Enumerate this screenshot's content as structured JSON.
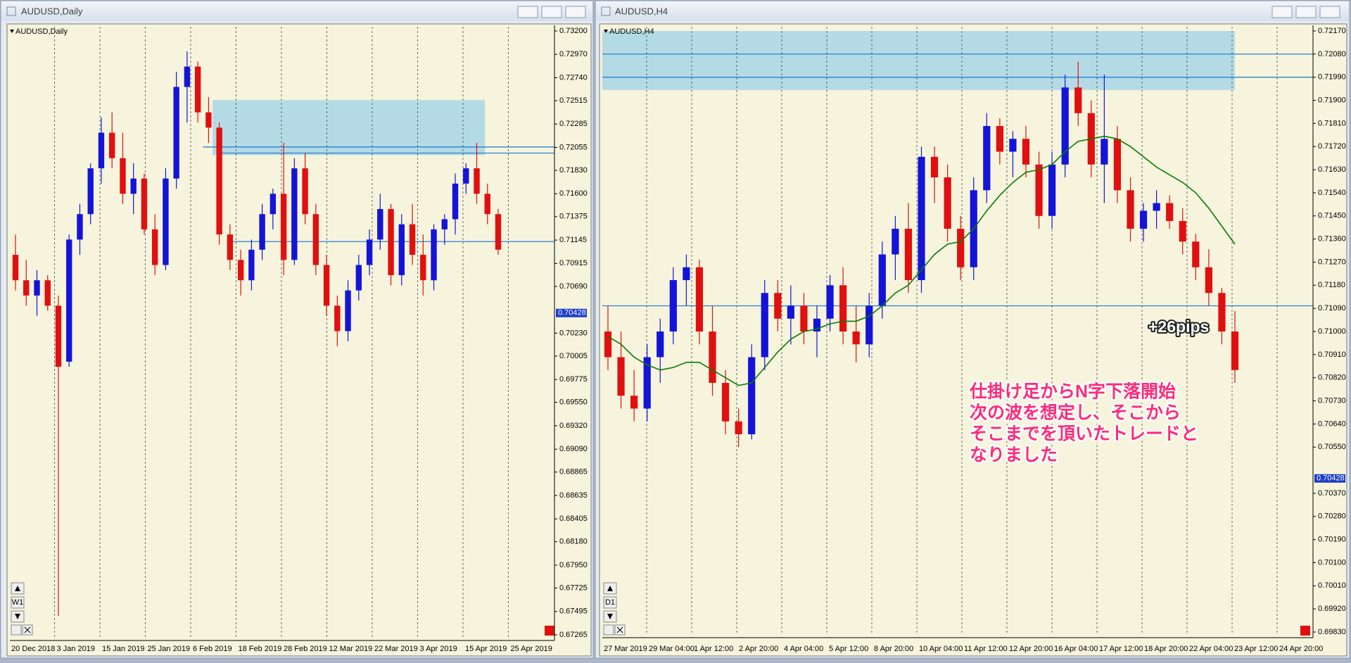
{
  "windows": [
    {
      "title": "AUDUSD,Daily",
      "period": "W1"
    },
    {
      "title": "AUDUSD,H4",
      "period": "D1"
    }
  ],
  "chart_data": [
    {
      "type": "candlestick",
      "label": "AUDUSD,Daily",
      "up_color": "#1414d8",
      "down_color": "#e01010",
      "ylim": [
        0.67265,
        0.732
      ],
      "yticks": [
        {
          "value": 0.732,
          "label": "0.73200"
        },
        {
          "value": 0.7297,
          "label": "0.72970"
        },
        {
          "value": 0.7274,
          "label": "0.72740"
        },
        {
          "value": 0.72515,
          "label": "0.72515"
        },
        {
          "value": 0.72285,
          "label": "0.72285"
        },
        {
          "value": 0.72055,
          "label": "0.72055"
        },
        {
          "value": 0.7183,
          "label": "0.71830"
        },
        {
          "value": 0.716,
          "label": "0.71600"
        },
        {
          "value": 0.71375,
          "label": "0.71375"
        },
        {
          "value": 0.71145,
          "label": "0.71145"
        },
        {
          "value": 0.70915,
          "label": "0.70915"
        },
        {
          "value": 0.7069,
          "label": "0.70690"
        },
        {
          "value": 0.7023,
          "label": "0.70230"
        },
        {
          "value": 0.70005,
          "label": "0.70005"
        },
        {
          "value": 0.69775,
          "label": "0.69775"
        },
        {
          "value": 0.6955,
          "label": "0.69550"
        },
        {
          "value": 0.6932,
          "label": "0.69320"
        },
        {
          "value": 0.6909,
          "label": "0.69090"
        },
        {
          "value": 0.68865,
          "label": "0.68865"
        },
        {
          "value": 0.68635,
          "label": "0.68635"
        },
        {
          "value": 0.68405,
          "label": "0.68405"
        },
        {
          "value": 0.6818,
          "label": "0.68180"
        },
        {
          "value": 0.6795,
          "label": "0.67950"
        },
        {
          "value": 0.67725,
          "label": "0.67725"
        },
        {
          "value": 0.67495,
          "label": "0.67495"
        },
        {
          "value": 0.67265,
          "label": "0.67265"
        }
      ],
      "bid": {
        "value": 0.70428,
        "label": "0.70428"
      },
      "x_labels": [
        "20 Dec 2018",
        "3 Jan 2019",
        "15 Jan 2019",
        "25 Jan 2019",
        "6 Feb 2019",
        "18 Feb 2019",
        "28 Feb 2019",
        "12 Mar 2019",
        "22 Mar 2019",
        "3 Apr 2019",
        "15 Apr 2019",
        "25 Apr 2019"
      ],
      "zone": [
        0.7198,
        0.7252
      ],
      "levels": [
        0.7206,
        0.72,
        0.7113
      ],
      "level_color": "#2a7fd4",
      "zone_color": "#add8e6",
      "candles": [
        [
          0.71,
          0.712,
          0.7065,
          0.7075
        ],
        [
          0.7075,
          0.7095,
          0.705,
          0.706
        ],
        [
          0.706,
          0.7085,
          0.704,
          0.7075
        ],
        [
          0.7075,
          0.708,
          0.7045,
          0.705
        ],
        [
          0.705,
          0.706,
          0.6745,
          0.699
        ],
        [
          0.6995,
          0.712,
          0.699,
          0.7115
        ],
        [
          0.7115,
          0.715,
          0.71,
          0.714
        ],
        [
          0.714,
          0.719,
          0.713,
          0.7185
        ],
        [
          0.7185,
          0.7235,
          0.717,
          0.722
        ],
        [
          0.722,
          0.724,
          0.7185,
          0.7195
        ],
        [
          0.7195,
          0.722,
          0.715,
          0.716
        ],
        [
          0.716,
          0.719,
          0.714,
          0.7175
        ],
        [
          0.7175,
          0.718,
          0.712,
          0.7125
        ],
        [
          0.7125,
          0.714,
          0.708,
          0.709
        ],
        [
          0.709,
          0.7185,
          0.7085,
          0.7175
        ],
        [
          0.7175,
          0.728,
          0.7165,
          0.7265
        ],
        [
          0.7265,
          0.73,
          0.723,
          0.7285
        ],
        [
          0.7285,
          0.729,
          0.723,
          0.724
        ],
        [
          0.724,
          0.7255,
          0.721,
          0.7225
        ],
        [
          0.7225,
          0.723,
          0.711,
          0.712
        ],
        [
          0.712,
          0.713,
          0.7085,
          0.7095
        ],
        [
          0.7095,
          0.7105,
          0.706,
          0.7075
        ],
        [
          0.7075,
          0.7115,
          0.7065,
          0.7105
        ],
        [
          0.7105,
          0.715,
          0.7095,
          0.714
        ],
        [
          0.714,
          0.7165,
          0.7125,
          0.716
        ],
        [
          0.716,
          0.721,
          0.708,
          0.7095
        ],
        [
          0.7095,
          0.7195,
          0.709,
          0.7185
        ],
        [
          0.7185,
          0.72,
          0.713,
          0.714
        ],
        [
          0.714,
          0.715,
          0.708,
          0.709
        ],
        [
          0.709,
          0.71,
          0.704,
          0.705
        ],
        [
          0.705,
          0.706,
          0.701,
          0.7025
        ],
        [
          0.7025,
          0.7075,
          0.7015,
          0.7065
        ],
        [
          0.7065,
          0.71,
          0.7055,
          0.709
        ],
        [
          0.709,
          0.7125,
          0.708,
          0.7115
        ],
        [
          0.7115,
          0.716,
          0.7105,
          0.7145
        ],
        [
          0.7145,
          0.715,
          0.707,
          0.708
        ],
        [
          0.708,
          0.714,
          0.707,
          0.713
        ],
        [
          0.713,
          0.715,
          0.709,
          0.71
        ],
        [
          0.71,
          0.712,
          0.706,
          0.7075
        ],
        [
          0.7075,
          0.713,
          0.7065,
          0.7125
        ],
        [
          0.7125,
          0.714,
          0.711,
          0.7135
        ],
        [
          0.7135,
          0.718,
          0.712,
          0.717
        ],
        [
          0.717,
          0.719,
          0.716,
          0.7185
        ],
        [
          0.7185,
          0.721,
          0.715,
          0.716
        ],
        [
          0.716,
          0.717,
          0.713,
          0.714
        ],
        [
          0.714,
          0.7145,
          0.71,
          0.7105
        ]
      ]
    },
    {
      "type": "candlestick",
      "label": "AUDUSD,H4",
      "up_color": "#1414d8",
      "down_color": "#e01010",
      "ylim": [
        0.6983,
        0.7217
      ],
      "yticks": [
        {
          "value": 0.7217,
          "label": "0.72170"
        },
        {
          "value": 0.7208,
          "label": "0.72080"
        },
        {
          "value": 0.7199,
          "label": "0.71990"
        },
        {
          "value": 0.719,
          "label": "0.71900"
        },
        {
          "value": 0.7181,
          "label": "0.71810"
        },
        {
          "value": 0.7172,
          "label": "0.71720"
        },
        {
          "value": 0.7163,
          "label": "0.71630"
        },
        {
          "value": 0.7154,
          "label": "0.71540"
        },
        {
          "value": 0.7145,
          "label": "0.71450"
        },
        {
          "value": 0.7136,
          "label": "0.71360"
        },
        {
          "value": 0.7127,
          "label": "0.71270"
        },
        {
          "value": 0.7118,
          "label": "0.71180"
        },
        {
          "value": 0.7109,
          "label": "0.71090"
        },
        {
          "value": 0.71,
          "label": "0.71000"
        },
        {
          "value": 0.7091,
          "label": "0.70910"
        },
        {
          "value": 0.7082,
          "label": "0.70820"
        },
        {
          "value": 0.7073,
          "label": "0.70730"
        },
        {
          "value": 0.7064,
          "label": "0.70640"
        },
        {
          "value": 0.7055,
          "label": "0.70550"
        },
        {
          "value": 0.7037,
          "label": "0.70370"
        },
        {
          "value": 0.7028,
          "label": "0.70280"
        },
        {
          "value": 0.7019,
          "label": "0.70190"
        },
        {
          "value": 0.701,
          "label": "0.70100"
        },
        {
          "value": 0.7001,
          "label": "0.70010"
        },
        {
          "value": 0.6992,
          "label": "0.69920"
        },
        {
          "value": 0.6983,
          "label": "0.69830"
        }
      ],
      "bid": {
        "value": 0.70428,
        "label": "0.70428"
      },
      "x_labels": [
        "27 Mar 2019",
        "29 Mar 04:00",
        "1 Apr 12:00",
        "2 Apr 20:00",
        "4 Apr 04:00",
        "5 Apr 12:00",
        "8 Apr 20:00",
        "10 Apr 04:00",
        "11 Apr 12:00",
        "12 Apr 20:00",
        "16 Apr 04:00",
        "17 Apr 12:00",
        "18 Apr 20:00",
        "22 Apr 04:00",
        "23 Apr 12:00",
        "24 Apr 20:00"
      ],
      "zone": [
        0.7194,
        0.7217
      ],
      "levels": [
        0.7208,
        0.7199,
        0.711
      ],
      "level_color": "#2a7fd4",
      "zone_color": "#add8e6",
      "candles": [
        [
          0.71,
          0.711,
          0.7085,
          0.709
        ],
        [
          0.709,
          0.71,
          0.707,
          0.7075
        ],
        [
          0.7075,
          0.7085,
          0.7065,
          0.707
        ],
        [
          0.707,
          0.7095,
          0.7065,
          0.709
        ],
        [
          0.709,
          0.7105,
          0.708,
          0.71
        ],
        [
          0.71,
          0.7125,
          0.7095,
          0.712
        ],
        [
          0.712,
          0.713,
          0.711,
          0.7125
        ],
        [
          0.7125,
          0.7128,
          0.7095,
          0.71
        ],
        [
          0.71,
          0.711,
          0.7075,
          0.708
        ],
        [
          0.708,
          0.7085,
          0.706,
          0.7065
        ],
        [
          0.7065,
          0.707,
          0.7055,
          0.706
        ],
        [
          0.706,
          0.7095,
          0.7058,
          0.709
        ],
        [
          0.709,
          0.712,
          0.7085,
          0.7115
        ],
        [
          0.7115,
          0.712,
          0.71,
          0.7105
        ],
        [
          0.7105,
          0.7118,
          0.7095,
          0.711
        ],
        [
          0.711,
          0.7115,
          0.7095,
          0.71
        ],
        [
          0.71,
          0.711,
          0.709,
          0.7105
        ],
        [
          0.7105,
          0.7122,
          0.71,
          0.7118
        ],
        [
          0.7118,
          0.7125,
          0.7095,
          0.71
        ],
        [
          0.71,
          0.711,
          0.7088,
          0.7095
        ],
        [
          0.7095,
          0.7115,
          0.709,
          0.711
        ],
        [
          0.711,
          0.7135,
          0.7105,
          0.713
        ],
        [
          0.713,
          0.7145,
          0.712,
          0.714
        ],
        [
          0.714,
          0.715,
          0.7115,
          0.712
        ],
        [
          0.712,
          0.7172,
          0.7115,
          0.7168
        ],
        [
          0.7168,
          0.7172,
          0.715,
          0.716
        ],
        [
          0.716,
          0.7165,
          0.7135,
          0.714
        ],
        [
          0.714,
          0.7145,
          0.712,
          0.7125
        ],
        [
          0.7125,
          0.716,
          0.712,
          0.7155
        ],
        [
          0.7155,
          0.7185,
          0.715,
          0.718
        ],
        [
          0.718,
          0.7183,
          0.7165,
          0.717
        ],
        [
          0.717,
          0.7178,
          0.716,
          0.7175
        ],
        [
          0.7175,
          0.718,
          0.716,
          0.7165
        ],
        [
          0.7165,
          0.717,
          0.714,
          0.7145
        ],
        [
          0.7145,
          0.717,
          0.714,
          0.7165
        ],
        [
          0.7165,
          0.72,
          0.716,
          0.7195
        ],
        [
          0.7195,
          0.7205,
          0.718,
          0.7185
        ],
        [
          0.7185,
          0.719,
          0.716,
          0.7165
        ],
        [
          0.7165,
          0.72,
          0.715,
          0.7175
        ],
        [
          0.7175,
          0.718,
          0.715,
          0.7155
        ],
        [
          0.7155,
          0.716,
          0.7135,
          0.714
        ],
        [
          0.714,
          0.715,
          0.7135,
          0.7147
        ],
        [
          0.7147,
          0.7155,
          0.714,
          0.715
        ],
        [
          0.715,
          0.7153,
          0.714,
          0.7143
        ],
        [
          0.7143,
          0.7148,
          0.713,
          0.7135
        ],
        [
          0.7135,
          0.7138,
          0.712,
          0.7125
        ],
        [
          0.7125,
          0.7132,
          0.711,
          0.7115
        ],
        [
          0.7115,
          0.7117,
          0.7095,
          0.71
        ],
        [
          0.71,
          0.7108,
          0.708,
          0.7085
        ]
      ],
      "ma_color": "#0a7a0a",
      "ma_values": [
        0.7098,
        0.7095,
        0.709,
        0.7087,
        0.7085,
        0.7086,
        0.7088,
        0.7088,
        0.7085,
        0.7082,
        0.7079,
        0.708,
        0.7086,
        0.7092,
        0.7097,
        0.71,
        0.7101,
        0.7103,
        0.7104,
        0.7104,
        0.7106,
        0.711,
        0.7115,
        0.7118,
        0.7124,
        0.713,
        0.7134,
        0.7135,
        0.714,
        0.7147,
        0.7153,
        0.7158,
        0.7162,
        0.7163,
        0.7165,
        0.717,
        0.7174,
        0.7175,
        0.7176,
        0.7175,
        0.7172,
        0.7168,
        0.7164,
        0.7161,
        0.7158,
        0.7154,
        0.7148,
        0.7141,
        0.7134
      ],
      "result": "+26pips",
      "note_lines": [
        "仕掛け足からN字下落開始",
        "次の波を想定し、そこから",
        "そこまでを頂いたトレードと",
        "なりました"
      ]
    }
  ]
}
